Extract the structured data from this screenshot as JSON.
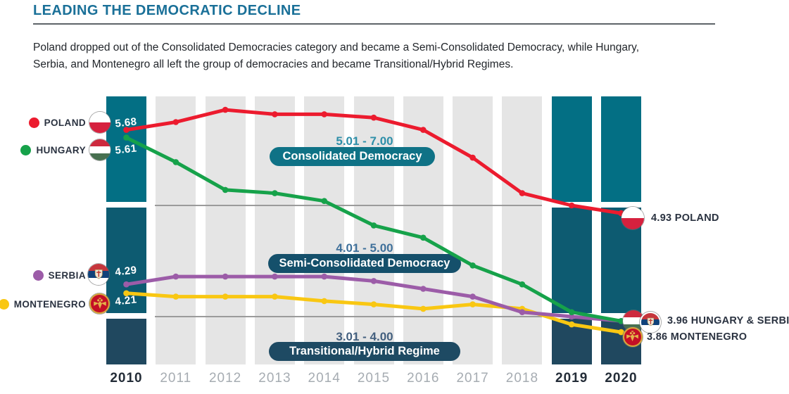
{
  "header": {
    "title": "LEADING THE DEMOCRATIC DECLINE",
    "description": "Poland dropped out of the Consolidated Democracies category and became a Semi-Consolidated Democracy, while Hungary,\nSerbia, and Montenegro all left the group of democracies and became Transitional/Hybrid Regimes."
  },
  "legend": {
    "items": [
      {
        "label": "POLAND",
        "color": "#EC1B2E"
      },
      {
        "label": "HUNGARY",
        "color": "#16A24A"
      },
      {
        "label": "SERBIA",
        "color": "#9C5CA8"
      },
      {
        "label": "MONTENEGRO",
        "color": "#F9C712"
      }
    ]
  },
  "annotations": {
    "start_values": [
      "5.68",
      "5.61",
      "4.29",
      "4.21"
    ],
    "end_labels": [
      "4.93 POLAND",
      "3.96 HUNGARY & SERBIA",
      "3.86 MONTENEGRO"
    ]
  },
  "chart_data": {
    "type": "line",
    "x": [
      "2010",
      "2011",
      "2012",
      "2013",
      "2014",
      "2015",
      "2016",
      "2017",
      "2018",
      "2019",
      "2020"
    ],
    "highlighted_x": [
      "2010",
      "2019",
      "2020"
    ],
    "series": [
      {
        "name": "Poland",
        "color": "#EC1B2E",
        "values": [
          5.68,
          5.75,
          5.86,
          5.82,
          5.82,
          5.79,
          5.68,
          5.43,
          5.11,
          5.0,
          4.93
        ],
        "start_label": "5.68",
        "end_label": "4.93 POLAND"
      },
      {
        "name": "Hungary",
        "color": "#16A24A",
        "values": [
          5.61,
          5.39,
          5.14,
          5.11,
          5.04,
          4.82,
          4.71,
          4.46,
          4.29,
          4.04,
          3.96
        ],
        "start_label": "5.61",
        "end_label": "3.96 HUNGARY & SERBIA"
      },
      {
        "name": "Serbia",
        "color": "#9C5CA8",
        "values": [
          4.29,
          4.36,
          4.36,
          4.36,
          4.36,
          4.32,
          4.25,
          4.18,
          4.04,
          4.0,
          3.96
        ],
        "start_label": "4.29",
        "end_label": "3.96 HUNGARY & SERBIA"
      },
      {
        "name": "Montenegro",
        "color": "#F9C712",
        "values": [
          4.21,
          4.18,
          4.18,
          4.18,
          4.14,
          4.11,
          4.07,
          4.11,
          4.07,
          3.93,
          3.86
        ],
        "start_label": "4.21",
        "end_label": "3.86 MONTENEGRO"
      }
    ],
    "bands": [
      {
        "range": "5.01 - 7.00",
        "label": "Consolidated Democracy",
        "pill_color": "#0F7286",
        "range_color": "#2E8FA9"
      },
      {
        "range": "4.01 - 5.00",
        "label": "Semi-Consolidated Democracy",
        "pill_color": "#15506B",
        "range_color": "#40719B"
      },
      {
        "range": "3.01 - 4.00",
        "label": "Transitional/Hybrid Regime",
        "pill_color": "#1E4A63",
        "range_color": "#44607F"
      }
    ],
    "gridline_values": [
      5.0,
      4.0
    ],
    "ylim": [
      3.5,
      6.1
    ],
    "grid": "two horizontal category boundary lines",
    "legend_position": "left",
    "column_colors": {
      "highlight": [
        "#036F84",
        "#0D5B71",
        "#20485F"
      ],
      "normal": "#E5E5E5"
    }
  }
}
